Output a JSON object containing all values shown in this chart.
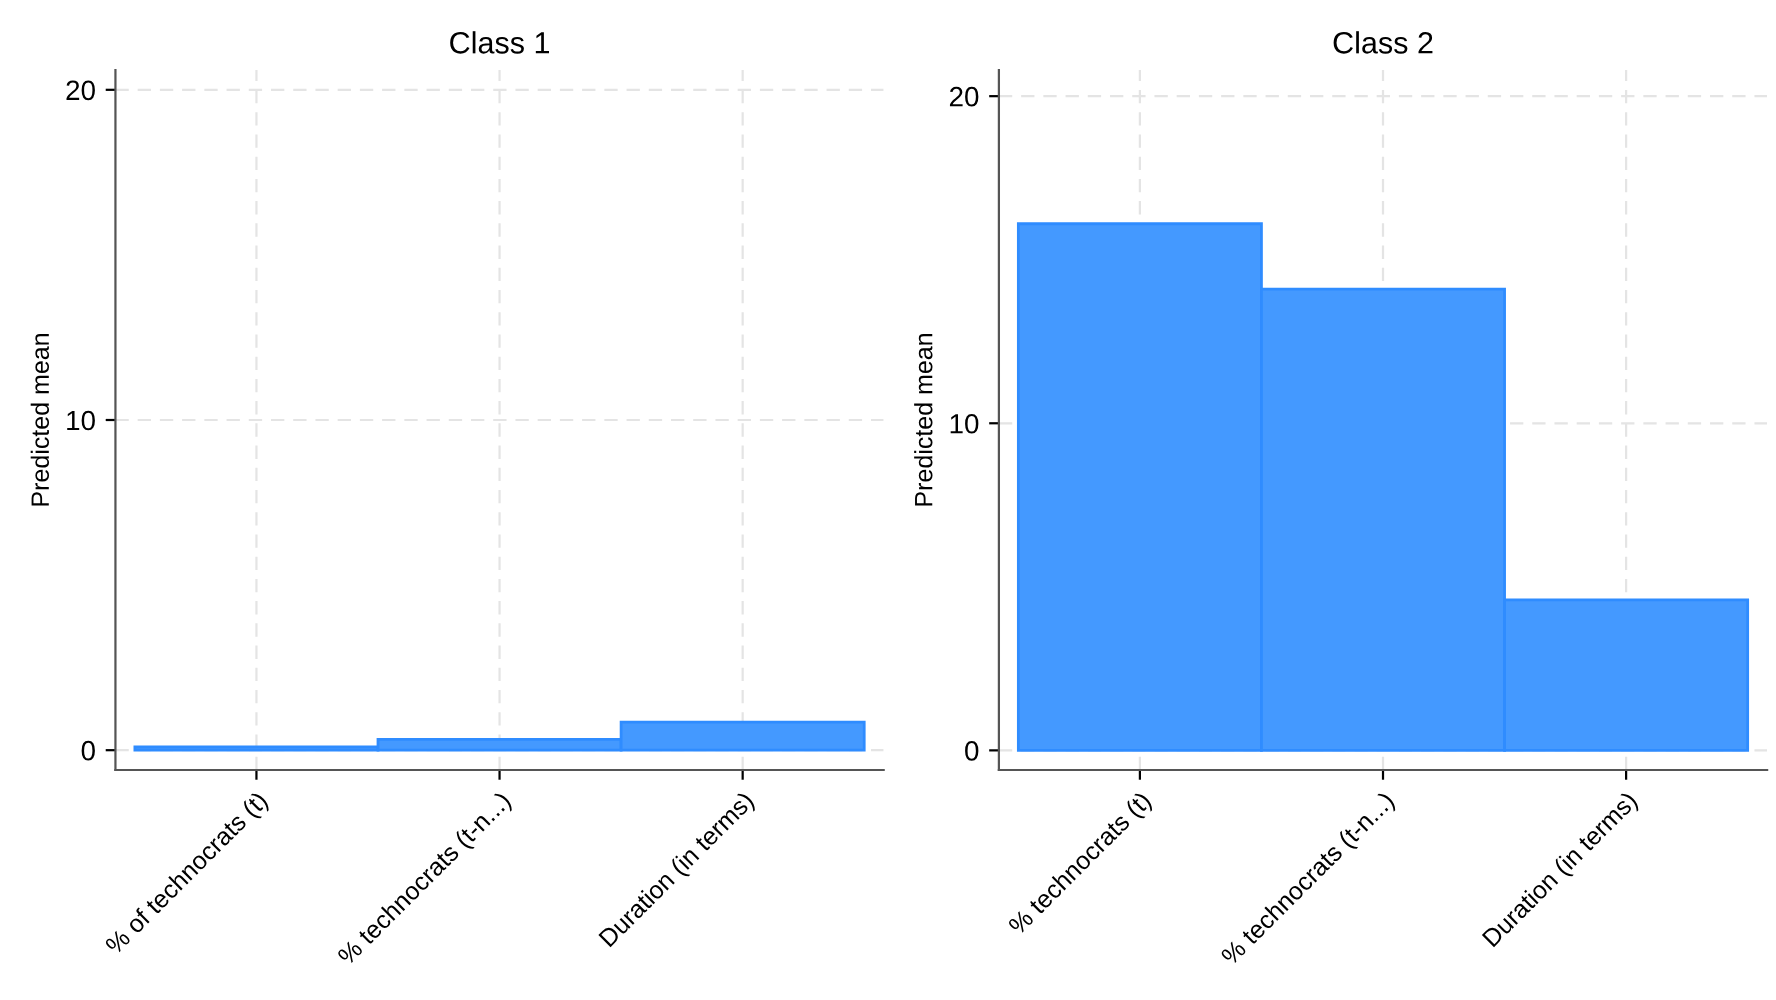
{
  "chart_data": [
    {
      "type": "bar",
      "title": "Class 1",
      "ylabel": "Predicted mean",
      "categories": [
        "% of technocrats (t)",
        "% technocrats (t-n...)",
        "Duration (in terms)"
      ],
      "values": [
        0.1,
        0.33,
        0.85
      ],
      "color": "#4499ff",
      "ylim": [
        -0.6,
        20.6
      ],
      "yticks": [
        0,
        10,
        20
      ],
      "grid": true
    },
    {
      "type": "bar",
      "title": "Class 2",
      "ylabel": "Predicted mean",
      "categories": [
        "% technocrats (t)",
        "% technocrats (t-n...)",
        "Duration (in terms)"
      ],
      "values": [
        16.1,
        14.1,
        4.6
      ],
      "color": "#4499ff",
      "ylim": [
        -0.6,
        20.8
      ],
      "yticks": [
        0,
        10,
        20
      ],
      "grid": true
    }
  ]
}
